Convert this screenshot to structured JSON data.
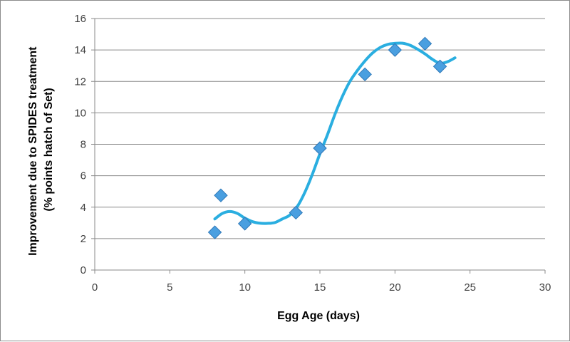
{
  "chart_data": {
    "type": "scatter",
    "title": "",
    "xlabel": "Egg Age (days)",
    "ylabel_line1": "Improvement due to SPIDES treatment",
    "ylabel_line2": "(% points hatch of Set)",
    "xlim": [
      0,
      30
    ],
    "ylim": [
      0,
      16
    ],
    "x_ticks": [
      0,
      5,
      10,
      15,
      20,
      25,
      30
    ],
    "y_ticks": [
      0,
      2,
      4,
      6,
      8,
      10,
      12,
      14,
      16
    ],
    "grid": "horizontal",
    "legend": "none",
    "series": [
      {
        "marker": "diamond",
        "color": "#4a9fe0",
        "points": [
          {
            "x": 8,
            "y": 2.4
          },
          {
            "x": 8.4,
            "y": 4.75
          },
          {
            "x": 10,
            "y": 2.95
          },
          {
            "x": 13.4,
            "y": 3.65
          },
          {
            "x": 15,
            "y": 7.75
          },
          {
            "x": 18,
            "y": 12.45
          },
          {
            "x": 20,
            "y": 14
          },
          {
            "x": 22,
            "y": 14.4
          },
          {
            "x": 23,
            "y": 12.95
          }
        ]
      }
    ],
    "trendline": {
      "type": "polynomial",
      "color": "#2aaee0",
      "points": [
        {
          "x": 8,
          "y": 3.25
        },
        {
          "x": 8.5,
          "y": 3.6
        },
        {
          "x": 9,
          "y": 3.72
        },
        {
          "x": 9.5,
          "y": 3.6
        },
        {
          "x": 10,
          "y": 3.3
        },
        {
          "x": 10.5,
          "y": 3.08
        },
        {
          "x": 11,
          "y": 2.98
        },
        {
          "x": 11.5,
          "y": 2.97
        },
        {
          "x": 12,
          "y": 3.02
        },
        {
          "x": 12.5,
          "y": 3.25
        },
        {
          "x": 13,
          "y": 3.5
        },
        {
          "x": 13.5,
          "y": 4.05
        },
        {
          "x": 14,
          "y": 4.95
        },
        {
          "x": 14.5,
          "y": 6.1
        },
        {
          "x": 15,
          "y": 7.4
        },
        {
          "x": 15.5,
          "y": 8.6
        },
        {
          "x": 16,
          "y": 9.9
        },
        {
          "x": 16.5,
          "y": 11.05
        },
        {
          "x": 17,
          "y": 12.0
        },
        {
          "x": 17.5,
          "y": 12.7
        },
        {
          "x": 18,
          "y": 13.3
        },
        {
          "x": 18.5,
          "y": 13.8
        },
        {
          "x": 19,
          "y": 14.15
        },
        {
          "x": 19.5,
          "y": 14.35
        },
        {
          "x": 20,
          "y": 14.42
        },
        {
          "x": 20.5,
          "y": 14.43
        },
        {
          "x": 21,
          "y": 14.3
        },
        {
          "x": 21.5,
          "y": 14.05
        },
        {
          "x": 22,
          "y": 13.75
        },
        {
          "x": 22.5,
          "y": 13.4
        },
        {
          "x": 23,
          "y": 13.15
        },
        {
          "x": 23.5,
          "y": 13.25
        },
        {
          "x": 24,
          "y": 13.5
        }
      ]
    }
  }
}
